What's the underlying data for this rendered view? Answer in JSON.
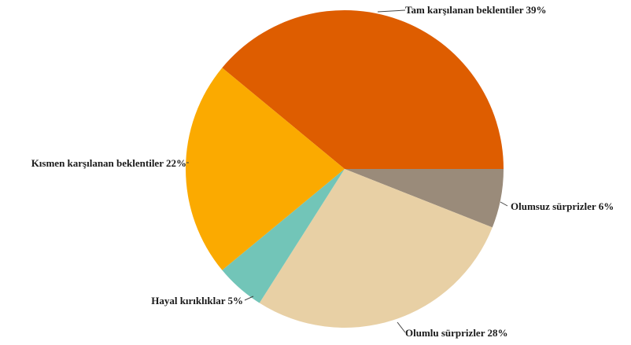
{
  "chart_data": {
    "type": "pie",
    "categories": [
      "Tam karşılanan beklentiler",
      "Olumsuz sürprizler",
      "Olumlu sürprizler",
      "Hayal kırıklıklar",
      "Kısmen karşılanan beklentiler"
    ],
    "values": [
      39,
      6,
      28,
      5,
      22
    ],
    "value_labels": [
      "39%",
      "6%",
      "28%",
      "5%",
      "22%"
    ],
    "colors": [
      "#de5d00",
      "#9a8b7a",
      "#e8d0a5",
      "#72c5b8",
      "#fbaa00"
    ],
    "start_angle_deg": 0,
    "direction": "clockwise from 3 o'clock, first slice drawn counter-clockwise",
    "legend": "none",
    "title": ""
  }
}
